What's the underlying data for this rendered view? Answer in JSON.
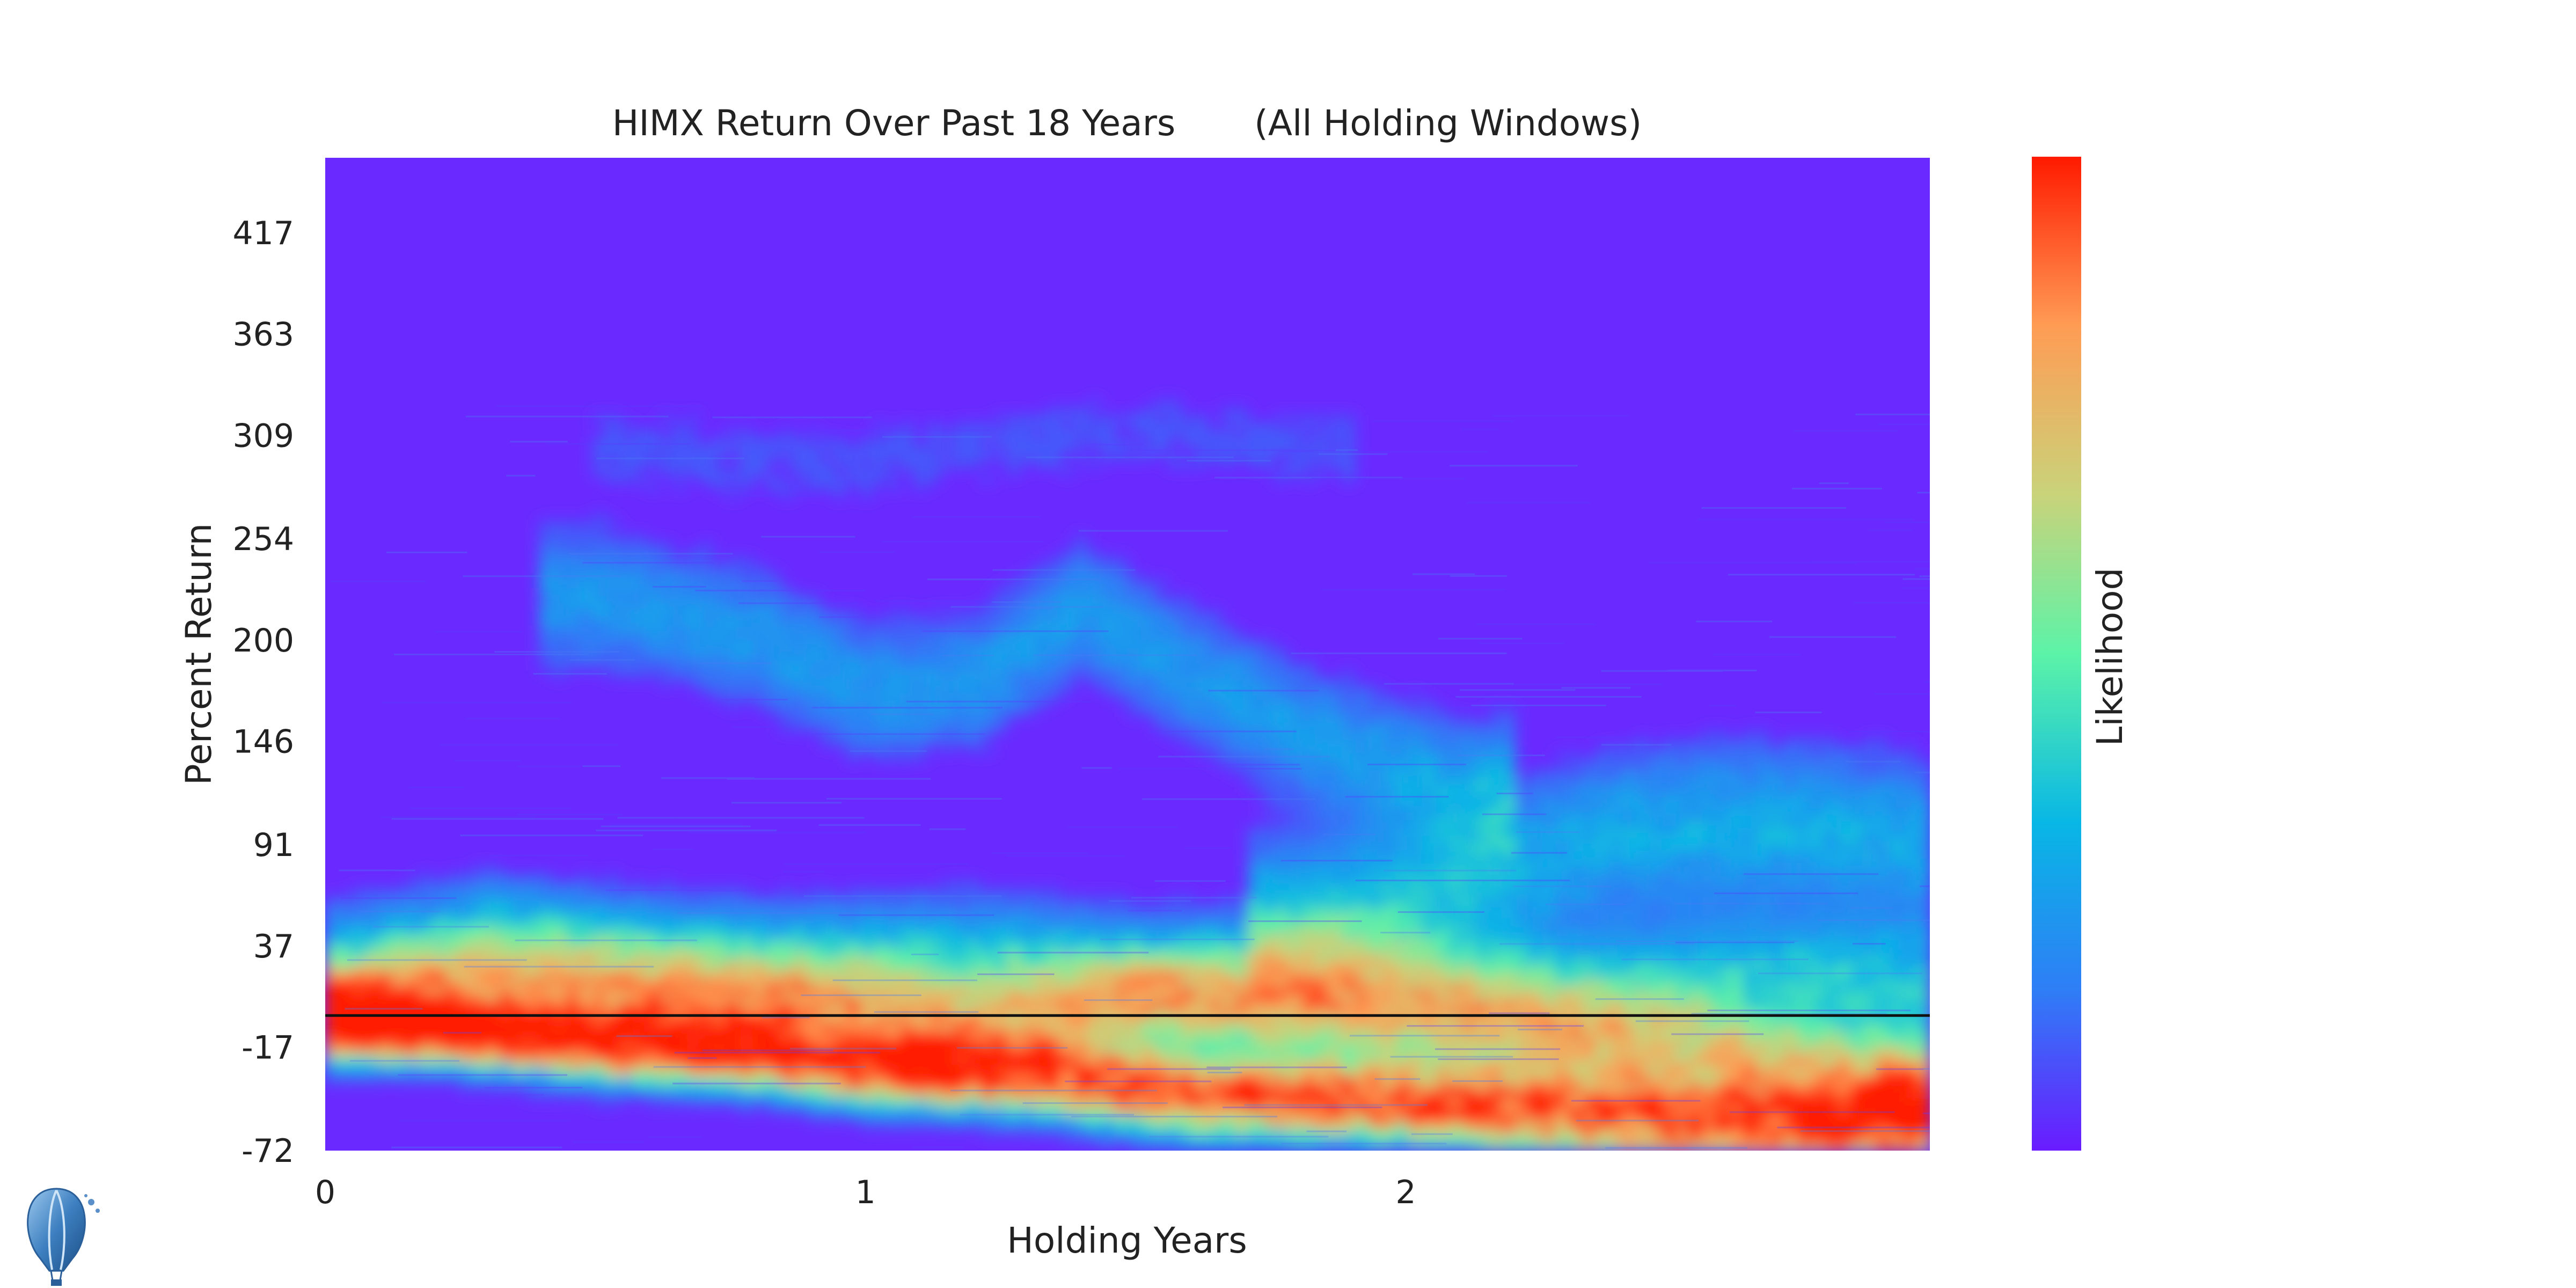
{
  "chart_data": {
    "type": "heatmap",
    "title": "HIMX Return Over Past 18 Years       (All Holding Windows)",
    "xlabel": "Holding Years",
    "ylabel": "Percent Return",
    "colorbar_label": "Likelihood",
    "x_ticks": [
      {
        "value": 0,
        "label": "0"
      },
      {
        "value": 1,
        "label": "1"
      },
      {
        "value": 2,
        "label": "2"
      }
    ],
    "y_ticks": [
      {
        "value": 417,
        "label": "417"
      },
      {
        "value": 363,
        "label": "363"
      },
      {
        "value": 309,
        "label": "309"
      },
      {
        "value": 254,
        "label": "254"
      },
      {
        "value": 200,
        "label": "200"
      },
      {
        "value": 146,
        "label": "146"
      },
      {
        "value": 91,
        "label": "91"
      },
      {
        "value": 37,
        "label": "37"
      },
      {
        "value": -17,
        "label": "-17"
      },
      {
        "value": -72,
        "label": "-72"
      }
    ],
    "xlim": [
      0,
      2.97
    ],
    "ylim": [
      -72,
      457
    ],
    "zero_line": 0,
    "colormap": "rainbow",
    "colormap_stops": [
      "#6a1bff",
      "#2f7df6",
      "#08b7e5",
      "#5cf3a8",
      "#c9d37a",
      "#ff9c54",
      "#ff1a00"
    ],
    "background_color": "#6a2aff",
    "density_bands": [
      {
        "name": "main",
        "points": [
          [
            0.0,
            -5
          ],
          [
            0.2,
            -10
          ],
          [
            0.5,
            -18
          ],
          [
            0.8,
            -22
          ],
          [
            1.0,
            -30
          ],
          [
            1.3,
            -33
          ],
          [
            1.6,
            -45
          ],
          [
            2.0,
            -48
          ],
          [
            2.4,
            -55
          ],
          [
            2.7,
            -60
          ],
          [
            2.97,
            -58
          ]
        ],
        "spread": 12,
        "intensity": 1.0
      },
      {
        "name": "mid-low",
        "points": [
          [
            0.0,
            0
          ],
          [
            0.3,
            15
          ],
          [
            0.6,
            10
          ],
          [
            0.9,
            5
          ],
          [
            1.2,
            -5
          ],
          [
            1.5,
            5
          ],
          [
            1.9,
            0
          ],
          [
            2.3,
            -10
          ],
          [
            2.7,
            -25
          ],
          [
            2.97,
            -35
          ]
        ],
        "spread": 18,
        "intensity": 0.55
      },
      {
        "name": "mid",
        "points": [
          [
            0.05,
            25
          ],
          [
            0.3,
            40
          ],
          [
            0.6,
            30
          ],
          [
            0.9,
            25
          ],
          [
            1.2,
            30
          ],
          [
            1.5,
            20
          ],
          [
            1.9,
            25
          ],
          [
            2.3,
            10
          ],
          [
            2.7,
            20
          ],
          [
            2.97,
            15
          ]
        ],
        "spread": 22,
        "intensity": 0.35
      },
      {
        "name": "upper-right",
        "points": [
          [
            1.8,
            50
          ],
          [
            2.1,
            70
          ],
          [
            2.4,
            95
          ],
          [
            2.7,
            100
          ],
          [
            2.97,
            90
          ]
        ],
        "spread": 30,
        "intensity": 0.3
      },
      {
        "name": "arc",
        "points": [
          [
            0.5,
            220
          ],
          [
            0.8,
            200
          ],
          [
            1.0,
            170
          ],
          [
            1.2,
            175
          ],
          [
            1.4,
            215
          ],
          [
            1.6,
            180
          ],
          [
            1.8,
            150
          ],
          [
            2.1,
            120
          ]
        ],
        "spread": 25,
        "intensity": 0.25
      },
      {
        "name": "upper-faint",
        "points": [
          [
            0.6,
            300
          ],
          [
            0.9,
            290
          ],
          [
            1.2,
            300
          ],
          [
            1.5,
            310
          ],
          [
            1.8,
            300
          ]
        ],
        "spread": 20,
        "intensity": 0.1
      }
    ]
  },
  "logo": {
    "name": "balloon-logo"
  }
}
